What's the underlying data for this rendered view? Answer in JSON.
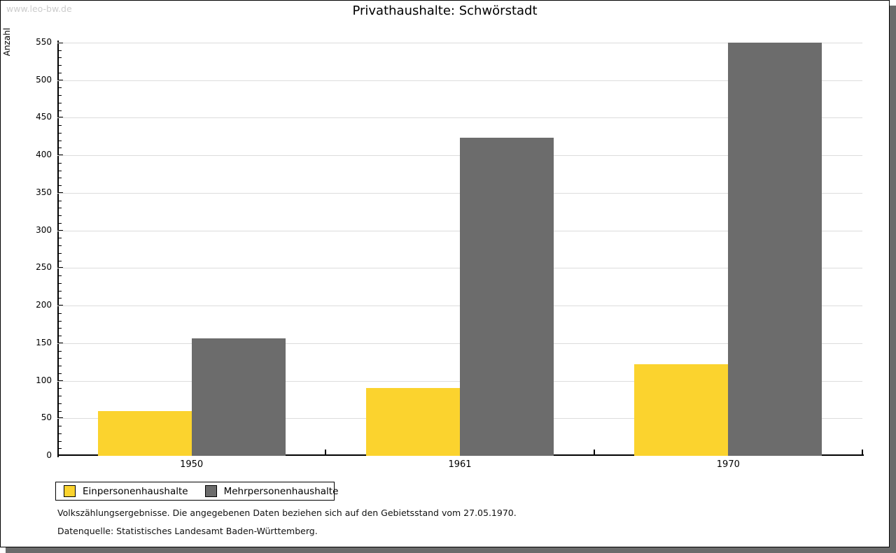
{
  "watermark": "www.leo-bw.de",
  "footer": {
    "line1": "Volkszählungsergebnisse. Die angegebenen Daten beziehen sich auf den Gebietsstand vom 27.05.1970.",
    "line2": "Datenquelle: Statistisches Landesamt Baden-Württemberg."
  },
  "chart_data": {
    "type": "bar",
    "title": "Privathaushalte: Schwörstadt",
    "xlabel": "",
    "ylabel": "Anzahl",
    "categories": [
      "1950",
      "1961",
      "1970"
    ],
    "series": [
      {
        "name": "Einpersonenhaushalte",
        "color": "#fbd32e",
        "values": [
          60,
          90,
          122
        ]
      },
      {
        "name": "Mehrpersonenhaushalte",
        "color": "#6c6c6c",
        "values": [
          156,
          423,
          550
        ]
      }
    ],
    "ylim": [
      0,
      550
    ],
    "ytick_step": 50,
    "minor_tick_step": 10,
    "grid": true,
    "gridline_color": "#dcdcdc",
    "legend_position": "bottom-left"
  }
}
